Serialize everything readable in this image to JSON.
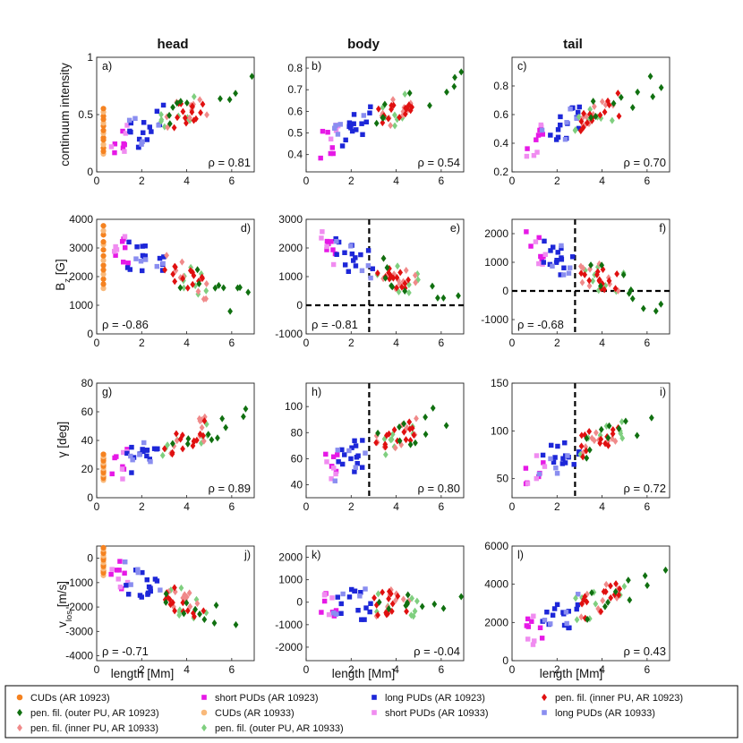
{
  "colors": {
    "cud_10923": "#f58220",
    "cud_10933": "#f9b97a",
    "short_10923": "#e619e6",
    "short_10933": "#f08cf0",
    "long_10923": "#1d27d8",
    "long_10933": "#8a8ef0",
    "outer_10923": "#107010",
    "outer_10933": "#7fcf7f",
    "inner_10923": "#e01010",
    "inner_10933": "#f08a8a"
  },
  "chart_data": {
    "type": "scatter",
    "column_titles": [
      "head",
      "body",
      "tail"
    ],
    "xlabel": "length [Mm]",
    "row_ylabels": [
      "continuum intensity",
      "B_z [G]",
      "γ [deg]",
      "v_los [m/s]"
    ],
    "legend": [
      {
        "key": "cud_10923",
        "marker": "circle",
        "label": "CUDs (AR 10923)"
      },
      {
        "key": "short_10923",
        "marker": "square",
        "label": "short PUDs (AR 10923)"
      },
      {
        "key": "long_10923",
        "marker": "square",
        "label": "long PUDs (AR 10923)"
      },
      {
        "key": "inner_10923",
        "marker": "diamond",
        "label": "pen. fil. (inner PU, AR 10923)"
      },
      {
        "key": "outer_10923",
        "marker": "diamond",
        "label": "pen. fil. (outer PU, AR 10923)"
      },
      {
        "key": "cud_10933",
        "marker": "circle",
        "label": "CUDs (AR 10933)"
      },
      {
        "key": "short_10933",
        "marker": "square",
        "label": "short PUDs (AR 10933)"
      },
      {
        "key": "long_10933",
        "marker": "square",
        "label": "long PUDs (AR 10933)"
      },
      {
        "key": "inner_10933",
        "marker": "diamond",
        "label": "pen. fil. (inner PU, AR 10933)"
      },
      {
        "key": "outer_10933",
        "marker": "diamond",
        "label": "pen. fil. (outer PU, AR 10933)"
      }
    ],
    "panels": [
      {
        "id": "a",
        "label": "a)",
        "row": 0,
        "col": 0,
        "xlim": [
          0,
          7
        ],
        "ylim": [
          0,
          1
        ],
        "xticks": [
          0,
          2,
          4,
          6
        ],
        "yticks": [
          0,
          0.5,
          1
        ],
        "yticklabels": [
          "0",
          "0.5",
          "1"
        ],
        "rho": "ρ = 0.81",
        "rho_pos": "bottom-right",
        "cud_variant": "intensity",
        "trend": 1.0,
        "vlines": [],
        "hlines": []
      },
      {
        "id": "b",
        "label": "b)",
        "row": 0,
        "col": 1,
        "xlim": [
          0,
          7
        ],
        "ylim": [
          0.32,
          0.85
        ],
        "xticks": [
          0,
          2,
          4,
          6
        ],
        "yticks": [
          0.4,
          0.5,
          0.6,
          0.7,
          0.8
        ],
        "yticklabels": [
          "0.4",
          "0.5",
          "0.6",
          "0.7",
          "0.8"
        ],
        "rho": "ρ = 0.54",
        "rho_pos": "bottom-right",
        "cud_variant": "none",
        "trend": 1.0,
        "vlines": [],
        "hlines": []
      },
      {
        "id": "c",
        "label": "c)",
        "row": 0,
        "col": 2,
        "xlim": [
          0,
          7
        ],
        "ylim": [
          0.2,
          1.0
        ],
        "xticks": [
          0,
          2,
          4,
          6
        ],
        "yticks": [
          0.2,
          0.4,
          0.6,
          0.8
        ],
        "yticklabels": [
          "0.2",
          "0.4",
          "0.6",
          "0.8"
        ],
        "rho": "ρ = 0.70",
        "rho_pos": "bottom-right",
        "cud_variant": "none",
        "trend": 1.0,
        "vlines": [],
        "hlines": []
      },
      {
        "id": "d",
        "label": "d)",
        "row": 1,
        "col": 0,
        "xlim": [
          0,
          7
        ],
        "ylim": [
          0,
          4000
        ],
        "xticks": [
          0,
          2,
          4,
          6
        ],
        "yticks": [
          0,
          1000,
          2000,
          3000,
          4000
        ],
        "yticklabels": [
          "0",
          "1000",
          "2000",
          "3000",
          "4000"
        ],
        "rho": "ρ = -0.86",
        "rho_pos": "bottom-left",
        "cud_variant": "field",
        "trend": -1.0,
        "vlines": [],
        "hlines": []
      },
      {
        "id": "e",
        "label": "e)",
        "row": 1,
        "col": 1,
        "xlim": [
          0,
          7
        ],
        "ylim": [
          -1000,
          3000
        ],
        "xticks": [
          0,
          2,
          4,
          6
        ],
        "yticks": [
          -1000,
          0,
          1000,
          2000,
          3000
        ],
        "yticklabels": [
          "-1000",
          "0",
          "1000",
          "2000",
          "3000"
        ],
        "rho": "ρ = -0.81",
        "rho_pos": "bottom-left",
        "cud_variant": "none",
        "trend": -1.0,
        "vlines": [
          2.8
        ],
        "hlines": [
          0
        ]
      },
      {
        "id": "f",
        "label": "f)",
        "row": 1,
        "col": 2,
        "xlim": [
          0,
          7
        ],
        "ylim": [
          -1500,
          2500
        ],
        "xticks": [
          0,
          2,
          4,
          6
        ],
        "yticks": [
          -1000,
          0,
          1000,
          2000
        ],
        "yticklabels": [
          "-1000",
          "0",
          "1000",
          "2000"
        ],
        "rho": "ρ = -0.68",
        "rho_pos": "bottom-left",
        "cud_variant": "none",
        "trend": -1.0,
        "vlines": [
          2.8
        ],
        "hlines": [
          0
        ]
      },
      {
        "id": "g",
        "label": "g)",
        "row": 2,
        "col": 0,
        "xlim": [
          0,
          7
        ],
        "ylim": [
          0,
          80
        ],
        "xticks": [
          0,
          2,
          4,
          6
        ],
        "yticks": [
          0,
          20,
          40,
          60,
          80
        ],
        "yticklabels": [
          "0",
          "20",
          "40",
          "60",
          "80"
        ],
        "rho": "ρ = 0.89",
        "rho_pos": "bottom-right",
        "cud_variant": "angle",
        "trend": 1.0,
        "vlines": [],
        "hlines": []
      },
      {
        "id": "h",
        "label": "h)",
        "row": 2,
        "col": 1,
        "xlim": [
          0,
          7
        ],
        "ylim": [
          30,
          118
        ],
        "xticks": [
          0,
          2,
          4,
          6
        ],
        "yticks": [
          40,
          60,
          80,
          100
        ],
        "yticklabels": [
          "40",
          "60",
          "80",
          "100"
        ],
        "rho": "ρ = 0.80",
        "rho_pos": "bottom-right",
        "cud_variant": "none",
        "trend": 1.0,
        "vlines": [
          2.8
        ],
        "hlines": []
      },
      {
        "id": "i",
        "label": "i)",
        "row": 2,
        "col": 2,
        "xlim": [
          0,
          7
        ],
        "ylim": [
          30,
          150
        ],
        "xticks": [
          0,
          2,
          4,
          6
        ],
        "yticks": [
          50,
          100,
          150
        ],
        "yticklabels": [
          "50",
          "100",
          "150"
        ],
        "rho": "ρ = 0.72",
        "rho_pos": "bottom-right",
        "cud_variant": "none",
        "trend": 1.0,
        "vlines": [
          2.8
        ],
        "hlines": []
      },
      {
        "id": "j",
        "label": "j)",
        "row": 3,
        "col": 0,
        "xlim": [
          0,
          7
        ],
        "ylim": [
          -4200,
          500
        ],
        "xticks": [
          0,
          2,
          4,
          6
        ],
        "yticks": [
          -4000,
          -3000,
          -2000,
          -1000,
          0
        ],
        "yticklabels": [
          "-4000",
          "-3000",
          "-2000",
          "-1000",
          "0"
        ],
        "rho": "ρ = -0.71",
        "rho_pos": "bottom-left",
        "cud_variant": "velocity",
        "trend": -1.0,
        "vlines": [],
        "hlines": []
      },
      {
        "id": "k",
        "label": "k)",
        "row": 3,
        "col": 1,
        "xlim": [
          0,
          7
        ],
        "ylim": [
          -2600,
          2500
        ],
        "xticks": [
          0,
          2,
          4,
          6
        ],
        "yticks": [
          -2000,
          -1000,
          0,
          1000,
          2000
        ],
        "yticklabels": [
          "-2000",
          "-1000",
          "0",
          "1000",
          "2000"
        ],
        "rho": "ρ = -0.04",
        "rho_pos": "bottom-right",
        "cud_variant": "none",
        "trend": 0.0,
        "vlines": [],
        "hlines": []
      },
      {
        "id": "l",
        "label": "l)",
        "row": 3,
        "col": 2,
        "xlim": [
          0,
          7
        ],
        "ylim": [
          0,
          6000
        ],
        "xticks": [
          0,
          2,
          4,
          6
        ],
        "yticks": [
          0,
          2000,
          4000,
          6000
        ],
        "yticklabels": [
          "0",
          "2000",
          "4000",
          "6000"
        ],
        "rho": "ρ = 0.43",
        "rho_pos": "bottom-right",
        "cud_variant": "none",
        "trend": 1.0,
        "vlines": [],
        "hlines": []
      }
    ]
  }
}
